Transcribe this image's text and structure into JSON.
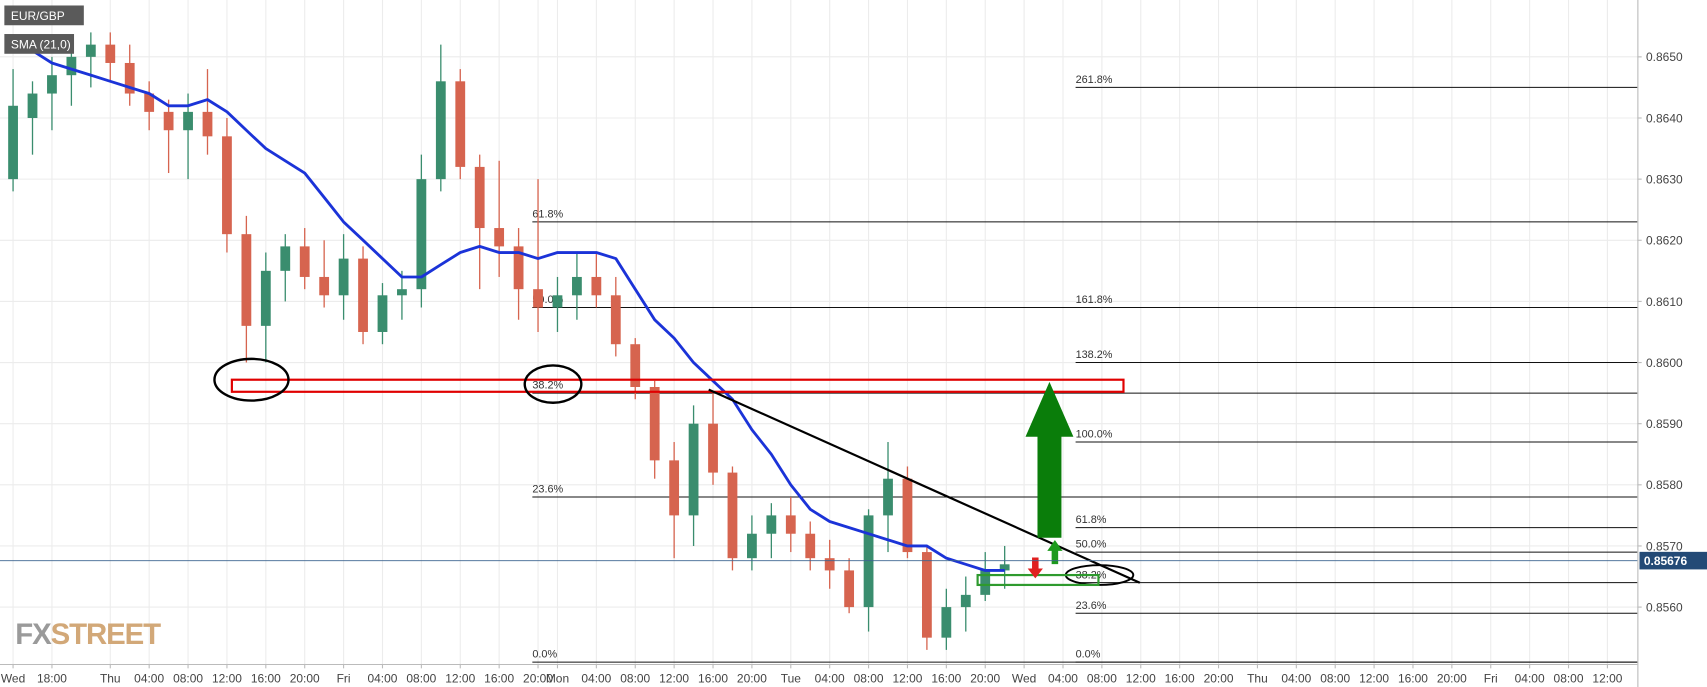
{
  "chart_data": {
    "type": "candlestick",
    "symbol": "EUR/GBP",
    "categories": [
      "Wed",
      null,
      "18:00",
      null,
      null,
      "Thu",
      null,
      "04:00",
      null,
      "08:00",
      null,
      "12:00",
      null,
      "16:00",
      null,
      "20:00",
      null,
      "Fri",
      null,
      "04:00",
      null,
      "08:00",
      null,
      "12:00",
      null,
      "16:00",
      null,
      "20:00",
      "Mon",
      null,
      "04:00",
      null,
      "08:00",
      null,
      "12:00",
      null,
      "16:00",
      null,
      "20:00",
      null,
      "Tue",
      null,
      "04:00",
      null,
      "08:00",
      null,
      "12:00",
      null,
      "16:00",
      null,
      "20:00",
      null,
      "Wed",
      null,
      "04:00",
      null,
      "08:00",
      null,
      "12:00",
      null,
      "16:00",
      null,
      "20:00",
      null,
      "Thu",
      null,
      "04:00",
      null,
      "08:00",
      null,
      "12:00",
      null,
      "16:00",
      null,
      "20:00",
      null,
      "Fri",
      null,
      "04:00",
      null,
      "08:00",
      null,
      "12:00",
      null
    ],
    "open": [
      0.863,
      0.864,
      0.8644,
      0.8647,
      0.865,
      0.8652,
      0.8649,
      0.8644,
      0.8641,
      0.8638,
      0.8641,
      0.8637,
      0.8621,
      0.8606,
      0.8615,
      0.8619,
      0.8614,
      0.8611,
      0.8617,
      0.8605,
      0.8611,
      0.8612,
      0.863,
      0.8646,
      0.8632,
      0.8622,
      0.8619,
      0.8612,
      0.8609,
      0.8611,
      0.8614,
      0.8611,
      0.8603,
      0.8596,
      0.8584,
      0.8575,
      0.859,
      0.8582,
      0.8568,
      0.8572,
      0.8575,
      0.8572,
      0.8568,
      0.8566,
      0.856,
      0.8575,
      0.8581,
      0.8569,
      0.8555,
      0.856,
      0.8562,
      0.8566,
      null,
      null,
      null,
      null,
      null,
      null,
      null,
      null,
      null,
      null,
      null,
      null,
      null,
      null,
      null,
      null,
      null,
      null,
      null,
      null,
      null,
      null,
      null,
      null,
      null,
      null,
      null,
      null,
      null,
      null,
      null,
      null
    ],
    "high": [
      0.8648,
      0.8646,
      0.865,
      0.8652,
      0.8654,
      0.8654,
      0.8652,
      0.8646,
      0.8643,
      0.8644,
      0.8648,
      0.864,
      0.8624,
      0.8618,
      0.8621,
      0.8622,
      0.862,
      0.8621,
      0.8619,
      0.8613,
      0.8615,
      0.8634,
      0.8652,
      0.8648,
      0.8634,
      0.8633,
      0.8622,
      0.863,
      0.8614,
      0.8618,
      0.8618,
      0.8614,
      0.8604,
      0.8597,
      0.8587,
      0.8593,
      0.8595,
      0.8583,
      0.8575,
      0.8577,
      0.8578,
      0.8574,
      0.8571,
      0.8568,
      0.8576,
      0.8587,
      0.8583,
      0.857,
      0.8563,
      0.8565,
      0.8569,
      0.857,
      null,
      null,
      null,
      null,
      null,
      null,
      null,
      null,
      null,
      null,
      null,
      null,
      null,
      null,
      null,
      null,
      null,
      null,
      null,
      null,
      null,
      null,
      null,
      null,
      null,
      null,
      null,
      null,
      null,
      null,
      null,
      null
    ],
    "low": [
      0.8628,
      0.8634,
      0.8638,
      0.8642,
      0.8645,
      0.8646,
      0.8642,
      0.8638,
      0.8631,
      0.863,
      0.8634,
      0.8618,
      0.86,
      0.86,
      0.861,
      0.8612,
      0.8609,
      0.8607,
      0.8603,
      0.8603,
      0.8607,
      0.8609,
      0.8628,
      0.863,
      0.8612,
      0.8614,
      0.8607,
      0.8605,
      0.8605,
      0.8607,
      0.8609,
      0.8601,
      0.8594,
      0.8581,
      0.8568,
      0.857,
      0.858,
      0.8566,
      0.8566,
      0.8568,
      0.8569,
      0.8566,
      0.8563,
      0.8559,
      0.8556,
      0.8569,
      0.8568,
      0.8553,
      0.8553,
      0.8556,
      0.8561,
      0.8563,
      null,
      null,
      null,
      null,
      null,
      null,
      null,
      null,
      null,
      null,
      null,
      null,
      null,
      null,
      null,
      null,
      null,
      null,
      null,
      null,
      null,
      null,
      null,
      null,
      null,
      null,
      null,
      null,
      null,
      null,
      null,
      null
    ],
    "close": [
      0.8642,
      0.8644,
      0.8647,
      0.865,
      0.8652,
      0.8649,
      0.8644,
      0.8641,
      0.8638,
      0.8641,
      0.8637,
      0.8621,
      0.8606,
      0.8615,
      0.8619,
      0.8614,
      0.8611,
      0.8617,
      0.8605,
      0.8611,
      0.8612,
      0.863,
      0.8646,
      0.8632,
      0.8622,
      0.8619,
      0.8612,
      0.8609,
      0.8611,
      0.8614,
      0.8611,
      0.8603,
      0.8596,
      0.8584,
      0.8575,
      0.859,
      0.8582,
      0.8568,
      0.8572,
      0.8575,
      0.8572,
      0.8568,
      0.8566,
      0.856,
      0.8575,
      0.8581,
      0.8569,
      0.8555,
      0.856,
      0.8562,
      0.8566,
      0.8567,
      null,
      null,
      null,
      null,
      null,
      null,
      null,
      null,
      null,
      null,
      null,
      null,
      null,
      null,
      null,
      null,
      null,
      null,
      null,
      null,
      null,
      null,
      null,
      null,
      null,
      null,
      null,
      null,
      null,
      null,
      null,
      null
    ],
    "colors": {
      "up": "#3a8d6e",
      "down": "#d6644f"
    },
    "series": [
      {
        "name": "SMA (21,0)",
        "color": "#1b33d8",
        "values": [
          0.8653,
          0.8651,
          0.8649,
          0.8648,
          0.8647,
          0.8646,
          0.8645,
          0.8644,
          0.8642,
          0.8642,
          0.8643,
          0.8641,
          0.8638,
          0.8635,
          0.8633,
          0.8631,
          0.8627,
          0.8623,
          0.862,
          0.8617,
          0.8614,
          0.8614,
          0.8616,
          0.8618,
          0.8619,
          0.8618,
          0.8618,
          0.8617,
          0.8618,
          0.8618,
          0.8618,
          0.8617,
          0.8612,
          0.8607,
          0.8604,
          0.86,
          0.8597,
          0.8594,
          0.8589,
          0.8585,
          0.858,
          0.8576,
          0.8574,
          0.8573,
          0.8572,
          0.8571,
          0.857,
          0.857,
          0.8568,
          0.8567,
          0.8566,
          0.8566,
          null,
          null,
          null,
          null,
          null,
          null,
          null,
          null,
          null,
          null,
          null,
          null,
          null,
          null,
          null,
          null,
          null,
          null,
          null,
          null,
          null,
          null,
          null,
          null,
          null,
          null,
          null,
          null,
          null,
          null,
          null,
          null
        ]
      }
    ],
    "ylim": [
      0.85507,
      0.86593
    ],
    "yticks": [
      {
        "value": 0.856,
        "label": "0.8560"
      },
      {
        "value": 0.857,
        "label": "0.8570"
      },
      {
        "value": 0.858,
        "label": "0.8580"
      },
      {
        "value": 0.859,
        "label": "0.8590"
      },
      {
        "value": 0.86,
        "label": "0.8600"
      },
      {
        "value": 0.861,
        "label": "0.8610"
      },
      {
        "value": 0.862,
        "label": "0.8620"
      },
      {
        "value": 0.863,
        "label": "0.8630"
      },
      {
        "value": 0.864,
        "label": "0.8640"
      },
      {
        "value": 0.865,
        "label": "0.8650"
      }
    ],
    "grid": true,
    "last_price": 0.85676,
    "fib_left": [
      {
        "label": "61.8%",
        "price": 0.8623
      },
      {
        "label": "50.0%",
        "price": 0.8609
      },
      {
        "label": "38.2%",
        "price": 0.8595
      },
      {
        "label": "23.6%",
        "price": 0.8578
      },
      {
        "label": "0.0%",
        "price": 0.8551
      }
    ],
    "fib_right": [
      {
        "label": "261.8%",
        "price": 0.8645
      },
      {
        "label": "161.8%",
        "price": 0.8609
      },
      {
        "label": "138.2%",
        "price": 0.86
      },
      {
        "label": "100.0%",
        "price": 0.8587
      },
      {
        "label": "61.8%",
        "price": 0.8573
      },
      {
        "label": "50.0%",
        "price": 0.8569
      },
      {
        "label": "38.2%",
        "price": 0.8564
      },
      {
        "label": "23.6%",
        "price": 0.8559
      },
      {
        "label": "0.0%",
        "price": 0.8551
      }
    ],
    "watermark_fx": "FX",
    "watermark_street": "STREET"
  }
}
